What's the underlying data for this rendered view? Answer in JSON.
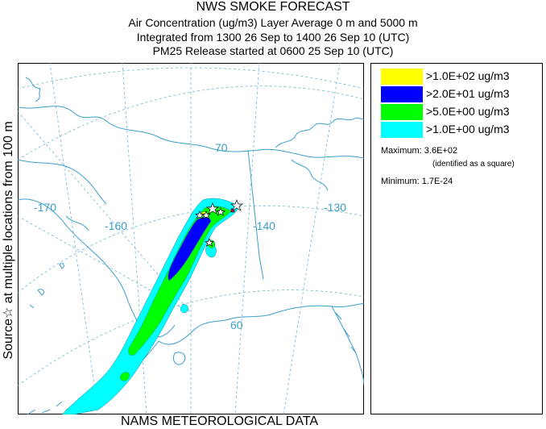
{
  "title": {
    "line1": "NWS SMOKE FORECAST",
    "line2": "Air Concentration (ug/m3) Layer Average    0 m and  5000 m",
    "line3": "Integrated from 1300 26 Sep to 1400 26 Sep 10 (UTC)",
    "line4": "PM25 Release started at 0600 25 Sep 10 (UTC)"
  },
  "side_label": "Source☆   at multiple locations   from   100 m",
  "footer": "NAMS METEOROLOGICAL DATA",
  "map": {
    "grid_labels": [
      {
        "id": "lon-170",
        "text": "-170"
      },
      {
        "id": "lon-160",
        "text": "-160"
      },
      {
        "id": "lon-140",
        "text": "-140"
      },
      {
        "id": "lon-130",
        "text": "-130"
      },
      {
        "id": "lat-70",
        "text": "70"
      },
      {
        "id": "lat-60",
        "text": "60"
      }
    ],
    "colors": {
      "coast": "#3a9fc8",
      "grid": "#6db6d6"
    }
  },
  "legend": {
    "levels": [
      {
        "label": ">1.0E+02 ug/m3",
        "color": "#ffff00"
      },
      {
        "label": ">2.0E+01 ug/m3",
        "color": "#0000ff"
      },
      {
        "label": ">5.0E+00 ug/m3",
        "color": "#00ff00"
      },
      {
        "label": ">1.0E+00 ug/m3",
        "color": "#00ffff"
      }
    ],
    "maximum_label": "Maximum:",
    "maximum_value": "3.6E+02",
    "maximum_note": "(identified as a square)",
    "minimum_label": "Minimum:",
    "minimum_value": "1.7E-24"
  }
}
